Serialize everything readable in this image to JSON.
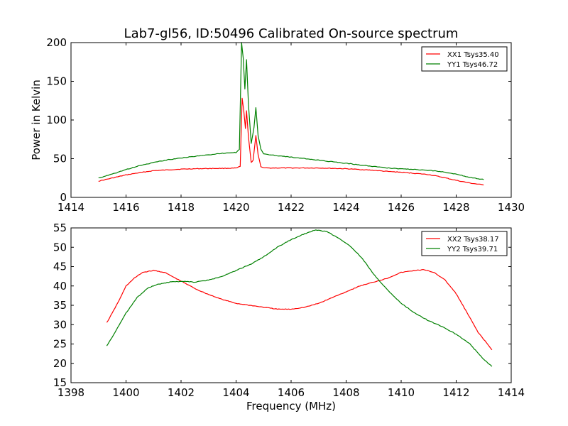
{
  "chart_data": [
    {
      "type": "line",
      "title": "Lab7-gl56, ID:50496 Calibrated On-source spectrum",
      "xlabel": "",
      "ylabel": "Power in Kelvin",
      "xlim": [
        1414,
        1430
      ],
      "ylim": [
        0,
        200
      ],
      "xticks": [
        1414,
        1416,
        1418,
        1420,
        1422,
        1424,
        1426,
        1428,
        1430
      ],
      "yticks": [
        0,
        50,
        100,
        150,
        200
      ],
      "legend_position": "top-right",
      "series": [
        {
          "name": "XX1 Tsys35.40",
          "color": "#ff0000",
          "points": [
            [
              1415.0,
              21
            ],
            [
              1415.5,
              25
            ],
            [
              1416.0,
              29
            ],
            [
              1416.5,
              32
            ],
            [
              1417.0,
              34.5
            ],
            [
              1417.5,
              35.5
            ],
            [
              1418.0,
              36.5
            ],
            [
              1418.5,
              37
            ],
            [
              1419.0,
              37.3
            ],
            [
              1419.5,
              37.5
            ],
            [
              1420.0,
              37.8
            ],
            [
              1420.15,
              40
            ],
            [
              1420.22,
              128
            ],
            [
              1420.28,
              112
            ],
            [
              1420.34,
              89
            ],
            [
              1420.38,
              112
            ],
            [
              1420.45,
              78
            ],
            [
              1420.55,
              45
            ],
            [
              1420.62,
              48
            ],
            [
              1420.72,
              80
            ],
            [
              1420.8,
              55
            ],
            [
              1420.9,
              40
            ],
            [
              1421.0,
              38
            ],
            [
              1421.5,
              38
            ],
            [
              1422.0,
              38
            ],
            [
              1422.5,
              38
            ],
            [
              1423.0,
              38
            ],
            [
              1423.5,
              37.5
            ],
            [
              1424.0,
              37
            ],
            [
              1424.5,
              36
            ],
            [
              1425.0,
              35
            ],
            [
              1425.5,
              33.5
            ],
            [
              1426.0,
              32.5
            ],
            [
              1426.5,
              31
            ],
            [
              1427.0,
              29.5
            ],
            [
              1427.5,
              26
            ],
            [
              1428.0,
              22
            ],
            [
              1428.5,
              18.5
            ],
            [
              1429.0,
              16
            ]
          ]
        },
        {
          "name": "YY1 Tsys46.72",
          "color": "#008000",
          "points": [
            [
              1415.0,
              25
            ],
            [
              1415.5,
              30
            ],
            [
              1416.0,
              36
            ],
            [
              1416.5,
              41
            ],
            [
              1417.0,
              45
            ],
            [
              1417.5,
              48.5
            ],
            [
              1418.0,
              51
            ],
            [
              1418.5,
              53
            ],
            [
              1419.0,
              55
            ],
            [
              1419.5,
              57
            ],
            [
              1420.0,
              58
            ],
            [
              1420.12,
              62
            ],
            [
              1420.2,
              200
            ],
            [
              1420.26,
              180
            ],
            [
              1420.32,
              140
            ],
            [
              1420.38,
              178
            ],
            [
              1420.45,
              120
            ],
            [
              1420.55,
              70
            ],
            [
              1420.65,
              90
            ],
            [
              1420.72,
              116
            ],
            [
              1420.8,
              80
            ],
            [
              1420.9,
              62
            ],
            [
              1421.0,
              56
            ],
            [
              1421.5,
              54
            ],
            [
              1422.0,
              52
            ],
            [
              1422.5,
              50
            ],
            [
              1423.0,
              48
            ],
            [
              1423.5,
              46
            ],
            [
              1424.0,
              44
            ],
            [
              1424.5,
              42
            ],
            [
              1425.0,
              40
            ],
            [
              1425.5,
              38
            ],
            [
              1426.0,
              37
            ],
            [
              1426.5,
              36
            ],
            [
              1427.0,
              35
            ],
            [
              1427.5,
              33
            ],
            [
              1428.0,
              30
            ],
            [
              1428.5,
              26
            ],
            [
              1429.0,
              23
            ]
          ]
        }
      ]
    },
    {
      "type": "line",
      "title": "",
      "xlabel": "Frequency (MHz)",
      "ylabel": "",
      "xlim": [
        1398,
        1414
      ],
      "ylim": [
        15,
        55
      ],
      "xticks": [
        1398,
        1400,
        1402,
        1404,
        1406,
        1408,
        1410,
        1412,
        1414
      ],
      "yticks": [
        15,
        20,
        25,
        30,
        35,
        40,
        45,
        50,
        55
      ],
      "legend_position": "top-right",
      "series": [
        {
          "name": "XX2 Tsys38.17",
          "color": "#ff0000",
          "points": [
            [
              1399.3,
              30.5
            ],
            [
              1399.5,
              33
            ],
            [
              1399.8,
              37
            ],
            [
              1400.0,
              40
            ],
            [
              1400.3,
              42
            ],
            [
              1400.6,
              43.5
            ],
            [
              1401.0,
              44
            ],
            [
              1401.4,
              43.5
            ],
            [
              1401.8,
              42
            ],
            [
              1402.2,
              40.5
            ],
            [
              1402.6,
              39
            ],
            [
              1403.0,
              37.8
            ],
            [
              1403.5,
              36.5
            ],
            [
              1404.0,
              35.5
            ],
            [
              1404.5,
              35
            ],
            [
              1405.0,
              34.5
            ],
            [
              1405.5,
              34
            ],
            [
              1406.0,
              34
            ],
            [
              1406.5,
              34.5
            ],
            [
              1407.0,
              35.5
            ],
            [
              1407.5,
              37
            ],
            [
              1408.0,
              38.5
            ],
            [
              1408.5,
              40
            ],
            [
              1409.0,
              41
            ],
            [
              1409.5,
              42
            ],
            [
              1410.0,
              43.5
            ],
            [
              1410.5,
              44
            ],
            [
              1410.8,
              44.2
            ],
            [
              1411.2,
              43.5
            ],
            [
              1411.6,
              41.5
            ],
            [
              1412.0,
              38
            ],
            [
              1412.4,
              33
            ],
            [
              1412.8,
              28
            ],
            [
              1413.3,
              23.5
            ]
          ]
        },
        {
          "name": "YY2 Tsys39.71",
          "color": "#008000",
          "points": [
            [
              1399.3,
              24.5
            ],
            [
              1399.6,
              28
            ],
            [
              1400.0,
              33
            ],
            [
              1400.4,
              37
            ],
            [
              1400.8,
              39.5
            ],
            [
              1401.2,
              40.5
            ],
            [
              1401.6,
              41
            ],
            [
              1402.0,
              41.2
            ],
            [
              1402.5,
              41
            ],
            [
              1403.0,
              41.5
            ],
            [
              1403.5,
              42.5
            ],
            [
              1404.0,
              44
            ],
            [
              1404.5,
              45.5
            ],
            [
              1405.0,
              47.5
            ],
            [
              1405.5,
              50
            ],
            [
              1406.0,
              52
            ],
            [
              1406.5,
              53.5
            ],
            [
              1406.9,
              54.5
            ],
            [
              1407.3,
              54
            ],
            [
              1407.7,
              52.5
            ],
            [
              1408.2,
              50
            ],
            [
              1408.6,
              47
            ],
            [
              1409.0,
              43
            ],
            [
              1409.5,
              39
            ],
            [
              1410.0,
              35.5
            ],
            [
              1410.5,
              33
            ],
            [
              1411.0,
              31
            ],
            [
              1411.5,
              29.5
            ],
            [
              1412.0,
              27.5
            ],
            [
              1412.5,
              25
            ],
            [
              1413.0,
              21
            ],
            [
              1413.3,
              19.2
            ]
          ]
        }
      ]
    }
  ]
}
